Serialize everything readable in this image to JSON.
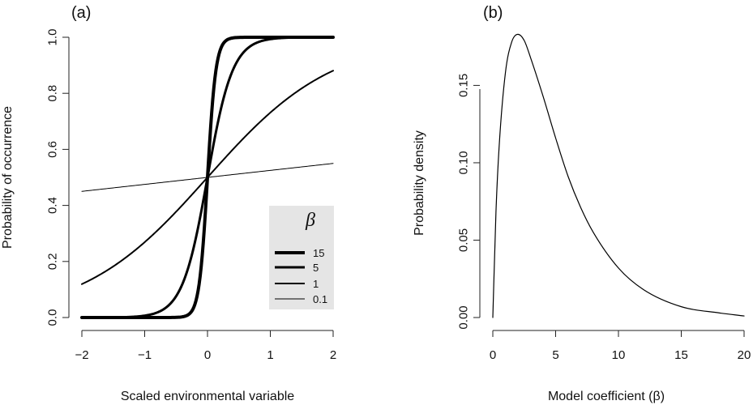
{
  "chart_data": [
    {
      "panel_label": "(a)",
      "type": "line",
      "xlabel": "Scaled environmental variable",
      "ylabel": "Probability of occurrence",
      "xlim": [
        -2,
        2
      ],
      "ylim": [
        0,
        1
      ],
      "x_ticks": [
        "−2",
        "−1",
        "0",
        "1",
        "2"
      ],
      "x_tick_values": [
        -2,
        -1,
        0,
        1,
        2
      ],
      "y_ticks": [
        "0.0",
        "0.2",
        "0.4",
        "0.6",
        "0.8",
        "1.0"
      ],
      "y_tick_values": [
        0,
        0.2,
        0.4,
        0.6,
        0.8,
        1.0
      ],
      "function": "logistic",
      "legend": {
        "title": "β",
        "placement": "bottom-right",
        "background": "#e5e5e5",
        "entries": [
          "15",
          "5",
          "1",
          "0.1"
        ]
      },
      "series": [
        {
          "name": "15",
          "beta": 15,
          "line_weight": "heaviest",
          "x": [
            -2,
            -1,
            -0.5,
            -0.25,
            0,
            0.25,
            0.5,
            1,
            2
          ],
          "y": [
            0.0,
            0.0,
            0.001,
            0.023,
            0.5,
            0.977,
            0.999,
            1.0,
            1.0
          ]
        },
        {
          "name": "5",
          "beta": 5,
          "line_weight": "heavy",
          "x": [
            -2,
            -1,
            -0.5,
            0,
            0.5,
            1,
            2
          ],
          "y": [
            0.0,
            0.007,
            0.076,
            0.5,
            0.924,
            0.993,
            1.0
          ]
        },
        {
          "name": "1",
          "beta": 1,
          "line_weight": "medium",
          "x": [
            -2,
            -1,
            0,
            1,
            2
          ],
          "y": [
            0.119,
            0.269,
            0.5,
            0.731,
            0.881
          ]
        },
        {
          "name": "0.1",
          "beta": 0.1,
          "line_weight": "thin",
          "x": [
            -2,
            0,
            2
          ],
          "y": [
            0.45,
            0.5,
            0.55
          ]
        }
      ]
    },
    {
      "panel_label": "(b)",
      "type": "line",
      "xlabel": "Model coefficient (β)",
      "ylabel": "Probability density",
      "xlim": [
        0,
        20
      ],
      "ylim": [
        0,
        0.19
      ],
      "x_ticks": [
        "0",
        "5",
        "10",
        "15",
        "20"
      ],
      "x_tick_values": [
        0,
        5,
        10,
        15,
        20
      ],
      "y_ticks": [
        "0.00",
        "0.05",
        "0.10",
        "0.15"
      ],
      "y_tick_values": [
        0,
        0.05,
        0.1,
        0.15
      ],
      "peak": {
        "x": 2.0,
        "y": 0.183
      },
      "series": [
        {
          "x": [
            0,
            0.25,
            0.5,
            1,
            1.5,
            2,
            2.5,
            3,
            4,
            5,
            6,
            7,
            8,
            10,
            12,
            15,
            18,
            20
          ],
          "y": [
            0,
            0.068,
            0.11,
            0.158,
            0.178,
            0.183,
            0.179,
            0.168,
            0.143,
            0.116,
            0.091,
            0.071,
            0.055,
            0.032,
            0.018,
            0.007,
            0.003,
            0.001
          ]
        }
      ]
    }
  ]
}
